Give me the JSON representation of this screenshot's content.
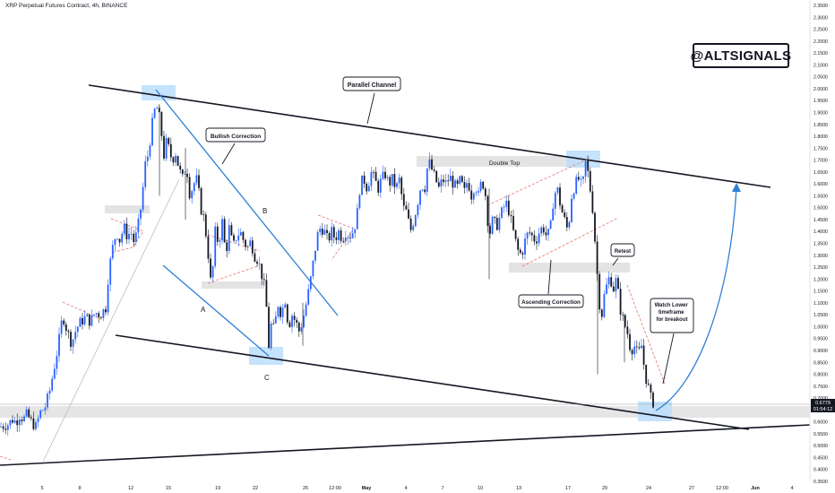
{
  "header": {
    "title": "XRP Perpetual Futures Contract, 4h, BINANCE"
  },
  "watermark": "@ALTSIGNALS",
  "price_box": {
    "price": "0.6779",
    "countdown": "01:54:12"
  },
  "chart_data": {
    "type": "candlestick",
    "title": "XRP Perpetual Futures Contract, 4h, BINANCE",
    "x_ticks": [
      "5",
      "8",
      "12",
      "15",
      "19",
      "22",
      "26",
      "12:00",
      "May",
      "4",
      "7",
      "10",
      "13",
      "17",
      "20",
      "24",
      "27",
      "12:00",
      "Jun",
      "4"
    ],
    "y_ticks": [
      "2.3500",
      "2.3000",
      "2.2500",
      "2.2000",
      "2.1500",
      "2.1000",
      "2.0500",
      "2.0000",
      "1.9500",
      "1.9000",
      "1.8500",
      "1.8000",
      "1.7500",
      "1.7000",
      "1.6500",
      "1.6000",
      "1.5500",
      "1.5000",
      "1.4500",
      "1.4000",
      "1.3500",
      "1.3000",
      "1.2500",
      "1.2000",
      "1.1500",
      "1.1000",
      "1.0500",
      "1.0000",
      "0.9500",
      "0.9000",
      "0.8500",
      "0.8000",
      "0.7500",
      "0.7000",
      "0.6500",
      "0.6000",
      "0.5500",
      "0.5000",
      "0.4500",
      "0.4000",
      "0.3500"
    ],
    "ylim": [
      0.35,
      2.35
    ],
    "last_price": 0.6779,
    "price_path": [
      [
        0,
        0.58
      ],
      [
        9,
        0.59
      ],
      [
        14,
        0.61
      ],
      [
        18,
        0.6
      ],
      [
        22,
        0.63
      ],
      [
        26,
        0.61
      ],
      [
        30,
        0.63
      ],
      [
        35,
        0.6
      ],
      [
        40,
        0.58
      ],
      [
        45,
        0.64
      ],
      [
        50,
        0.66
      ],
      [
        55,
        0.72
      ],
      [
        60,
        0.82
      ],
      [
        65,
        0.92
      ],
      [
        70,
        1.05
      ],
      [
        75,
        0.98
      ],
      [
        80,
        0.93
      ],
      [
        85,
        0.99
      ],
      [
        90,
        1.02
      ],
      [
        96,
        1.04
      ],
      [
        101,
        1.02
      ],
      [
        106,
        1.06
      ],
      [
        112,
        1.05
      ],
      [
        118,
        1.08
      ],
      [
        121,
        1.22
      ],
      [
        125,
        1.32
      ],
      [
        130,
        1.4
      ],
      [
        134,
        1.36
      ],
      [
        138,
        1.42
      ],
      [
        142,
        1.38
      ],
      [
        146,
        1.4
      ],
      [
        150,
        1.35
      ],
      [
        154,
        1.42
      ],
      [
        158,
        1.52
      ],
      [
        162,
        1.68
      ],
      [
        165,
        1.72
      ],
      [
        168,
        1.8
      ],
      [
        171,
        1.88
      ],
      [
        174,
        1.93
      ],
      [
        177,
        1.9
      ],
      [
        180,
        1.82
      ],
      [
        183,
        1.72
      ],
      [
        186,
        1.78
      ],
      [
        189,
        1.74
      ],
      [
        192,
        1.7
      ],
      [
        196,
        1.73
      ],
      [
        200,
        1.66
      ],
      [
        204,
        1.62
      ],
      [
        208,
        1.68
      ],
      [
        212,
        1.55
      ],
      [
        216,
        1.6
      ],
      [
        220,
        1.62
      ],
      [
        224,
        1.5
      ],
      [
        228,
        1.45
      ],
      [
        232,
        1.32
      ],
      [
        236,
        1.15
      ],
      [
        240,
        1.4
      ],
      [
        244,
        1.35
      ],
      [
        248,
        1.44
      ],
      [
        252,
        1.3
      ],
      [
        256,
        1.42
      ],
      [
        260,
        1.33
      ],
      [
        264,
        1.38
      ],
      [
        268,
        1.4
      ],
      [
        272,
        1.36
      ],
      [
        276,
        1.33
      ],
      [
        280,
        1.36
      ],
      [
        284,
        1.3
      ],
      [
        288,
        1.28
      ],
      [
        292,
        1.22
      ],
      [
        296,
        1.15
      ],
      [
        298,
        1.05
      ],
      [
        300,
        0.92
      ],
      [
        303,
        1.02
      ],
      [
        306,
        0.98
      ],
      [
        310,
        1.1
      ],
      [
        314,
        1.05
      ],
      [
        318,
        1.12
      ],
      [
        322,
        1.0
      ],
      [
        326,
        1.05
      ],
      [
        330,
        1.02
      ],
      [
        334,
        0.98
      ],
      [
        338,
        1.03
      ],
      [
        342,
        1.1
      ],
      [
        346,
        1.18
      ],
      [
        350,
        1.28
      ],
      [
        354,
        1.38
      ],
      [
        358,
        1.42
      ],
      [
        362,
        1.4
      ],
      [
        366,
        1.36
      ],
      [
        370,
        1.4
      ],
      [
        374,
        1.37
      ],
      [
        378,
        1.4
      ],
      [
        382,
        1.37
      ],
      [
        386,
        1.4
      ],
      [
        390,
        1.38
      ],
      [
        394,
        1.4
      ],
      [
        398,
        1.45
      ],
      [
        402,
        1.6
      ],
      [
        406,
        1.62
      ],
      [
        410,
        1.58
      ],
      [
        414,
        1.65
      ],
      [
        418,
        1.62
      ],
      [
        422,
        1.58
      ],
      [
        426,
        1.62
      ],
      [
        430,
        1.64
      ],
      [
        434,
        1.6
      ],
      [
        438,
        1.62
      ],
      [
        442,
        1.58
      ],
      [
        446,
        1.62
      ],
      [
        450,
        1.5
      ],
      [
        454,
        1.48
      ],
      [
        458,
        1.4
      ],
      [
        462,
        1.45
      ],
      [
        466,
        1.52
      ],
      [
        470,
        1.6
      ],
      [
        474,
        1.58
      ],
      [
        478,
        1.7
      ],
      [
        482,
        1.66
      ],
      [
        486,
        1.62
      ],
      [
        490,
        1.58
      ],
      [
        494,
        1.62
      ],
      [
        498,
        1.6
      ],
      [
        502,
        1.63
      ],
      [
        506,
        1.6
      ],
      [
        510,
        1.58
      ],
      [
        514,
        1.62
      ],
      [
        518,
        1.56
      ],
      [
        522,
        1.62
      ],
      [
        526,
        1.55
      ],
      [
        530,
        1.6
      ],
      [
        534,
        1.55
      ],
      [
        538,
        1.62
      ],
      [
        542,
        1.55
      ],
      [
        546,
        1.38
      ],
      [
        550,
        1.45
      ],
      [
        554,
        1.42
      ],
      [
        558,
        1.46
      ],
      [
        562,
        1.5
      ],
      [
        566,
        1.52
      ],
      [
        570,
        1.45
      ],
      [
        574,
        1.38
      ],
      [
        578,
        1.32
      ],
      [
        582,
        1.3
      ],
      [
        586,
        1.36
      ],
      [
        590,
        1.4
      ],
      [
        594,
        1.38
      ],
      [
        598,
        1.36
      ],
      [
        602,
        1.4
      ],
      [
        606,
        1.42
      ],
      [
        610,
        1.38
      ],
      [
        614,
        1.4
      ],
      [
        618,
        1.55
      ],
      [
        622,
        1.58
      ],
      [
        626,
        1.5
      ],
      [
        630,
        1.45
      ],
      [
        634,
        1.4
      ],
      [
        638,
        1.55
      ],
      [
        642,
        1.6
      ],
      [
        646,
        1.62
      ],
      [
        650,
        1.58
      ],
      [
        654,
        1.7
      ],
      [
        658,
        1.6
      ],
      [
        662,
        1.48
      ],
      [
        666,
        1.25
      ],
      [
        669,
        1.1
      ],
      [
        672,
        1.05
      ],
      [
        675,
        1.15
      ],
      [
        678,
        1.18
      ],
      [
        681,
        1.22
      ],
      [
        684,
        1.15
      ],
      [
        688,
        1.2
      ],
      [
        692,
        1.08
      ],
      [
        696,
        1.02
      ],
      [
        700,
        0.98
      ],
      [
        704,
        0.9
      ],
      [
        708,
        0.92
      ],
      [
        712,
        0.88
      ],
      [
        716,
        0.92
      ],
      [
        720,
        0.8
      ],
      [
        724,
        0.74
      ],
      [
        727,
        0.69
      ],
      [
        730,
        0.678
      ]
    ]
  },
  "annotations": {
    "parallel_channel": "Parallel Channel",
    "bullish_correction": "Bullish Correction",
    "double_top": "Double Top",
    "retest": "Retest",
    "ascending_correction": "Ascending Correction",
    "watch_lower": "Watch Lower timeframe for breakout",
    "label_a": "A",
    "label_b": "B",
    "label_c": "C"
  },
  "colors": {
    "up": "#2962ff",
    "down": "#131722",
    "trend": "#2e7fd6",
    "dashed": "#e57373",
    "highlight_blue": "#bbdefb",
    "highlight_gray": "#e0e0e0"
  }
}
